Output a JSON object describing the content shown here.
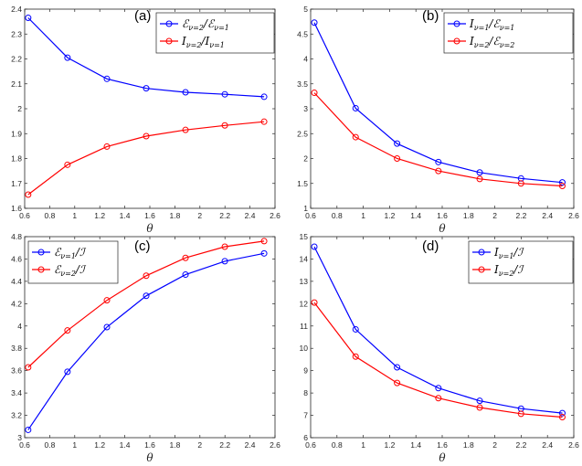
{
  "chart_data": [
    {
      "type": "line",
      "panel": "(a)",
      "xlabel": "θ",
      "x": [
        0.628,
        0.942,
        1.257,
        1.571,
        1.885,
        2.199,
        2.513
      ],
      "xlim": [
        0.6,
        2.6
      ],
      "xticks": [
        "0.6",
        "0.8",
        "1",
        "1.2",
        "1.4",
        "1.6",
        "1.8",
        "2",
        "2.2",
        "2.4",
        "2.6"
      ],
      "ylim": [
        1.6,
        2.4
      ],
      "yticks": [
        "1.6",
        "1.7",
        "1.8",
        "1.9",
        "2",
        "2.1",
        "2.2",
        "2.3",
        "2.4"
      ],
      "legend_position": "top-right",
      "series": [
        {
          "name": "E_{ν=2}/E_{ν=1}",
          "legend": {
            "a": "ℰ",
            "as": "ν=2",
            "b": "ℰ",
            "bs": "ν=1"
          },
          "color": "#0000ff",
          "values": [
            2.365,
            2.205,
            2.12,
            2.082,
            2.066,
            2.058,
            2.048
          ]
        },
        {
          "name": "I_{ν=2}/I_{ν=1}",
          "legend": {
            "a": "I",
            "as": "ν=2",
            "b": "I",
            "bs": "ν=1"
          },
          "color": "#ff0000",
          "values": [
            1.655,
            1.775,
            1.848,
            1.89,
            1.915,
            1.933,
            1.948
          ]
        }
      ]
    },
    {
      "type": "line",
      "panel": "(b)",
      "xlabel": "θ",
      "x": [
        0.628,
        0.942,
        1.257,
        1.571,
        1.885,
        2.199,
        2.513
      ],
      "xlim": [
        0.6,
        2.6
      ],
      "xticks": [
        "0.6",
        "0.8",
        "1",
        "1.2",
        "1.4",
        "1.6",
        "1.8",
        "2",
        "2.2",
        "2.4",
        "2.6"
      ],
      "ylim": [
        1,
        5
      ],
      "yticks": [
        "1",
        "1.5",
        "2",
        "2.5",
        "3",
        "3.5",
        "4",
        "4.5",
        "5"
      ],
      "legend_position": "top-right",
      "series": [
        {
          "name": "I_{ν=1}/E_{ν=1}",
          "legend": {
            "a": "I",
            "as": "ν=1",
            "b": "ℰ",
            "bs": "ν=1"
          },
          "color": "#0000ff",
          "values": [
            4.73,
            3.01,
            2.3,
            1.93,
            1.72,
            1.6,
            1.52
          ]
        },
        {
          "name": "I_{ν=2}/E_{ν=2}",
          "legend": {
            "a": "I",
            "as": "ν=2",
            "b": "ℰ",
            "bs": "ν=2"
          },
          "color": "#ff0000",
          "values": [
            3.32,
            2.43,
            2.0,
            1.75,
            1.59,
            1.5,
            1.45
          ]
        }
      ]
    },
    {
      "type": "line",
      "panel": "(c)",
      "xlabel": "θ",
      "x": [
        0.628,
        0.942,
        1.257,
        1.571,
        1.885,
        2.199,
        2.513
      ],
      "xlim": [
        0.6,
        2.6
      ],
      "xticks": [
        "0.6",
        "0.8",
        "1",
        "1.2",
        "1.4",
        "1.6",
        "1.8",
        "2",
        "2.2",
        "2.4",
        "2.6"
      ],
      "ylim": [
        3,
        4.8
      ],
      "yticks": [
        "3",
        "3.2",
        "3.4",
        "3.6",
        "3.8",
        "4",
        "4.2",
        "4.4",
        "4.6",
        "4.8"
      ],
      "legend_position": "top-left",
      "series": [
        {
          "name": "E_{ν=1}/I",
          "legend": {
            "a": "ℰ",
            "as": "ν=1",
            "b": "ℐ",
            "bs": ""
          },
          "color": "#0000ff",
          "values": [
            3.07,
            3.59,
            3.99,
            4.27,
            4.46,
            4.58,
            4.65
          ]
        },
        {
          "name": "E_{ν=2}/I",
          "legend": {
            "a": "ℰ",
            "as": "ν=2",
            "b": "ℐ",
            "bs": ""
          },
          "color": "#ff0000",
          "values": [
            3.63,
            3.96,
            4.23,
            4.45,
            4.61,
            4.71,
            4.76
          ]
        }
      ]
    },
    {
      "type": "line",
      "panel": "(d)",
      "xlabel": "θ",
      "x": [
        0.628,
        0.942,
        1.257,
        1.571,
        1.885,
        2.199,
        2.513
      ],
      "xlim": [
        0.6,
        2.6
      ],
      "xticks": [
        "0.6",
        "0.8",
        "1",
        "1.2",
        "1.4",
        "1.6",
        "1.8",
        "2",
        "2.2",
        "2.4",
        "2.6"
      ],
      "ylim": [
        6,
        15
      ],
      "yticks": [
        "6",
        "7",
        "8",
        "9",
        "10",
        "11",
        "12",
        "13",
        "14",
        "15"
      ],
      "legend_position": "top-right",
      "series": [
        {
          "name": "I_{ν=1}/I",
          "legend": {
            "a": "I",
            "as": "ν=1",
            "b": "ℐ",
            "bs": ""
          },
          "color": "#0000ff",
          "values": [
            14.55,
            10.85,
            9.15,
            8.22,
            7.65,
            7.3,
            7.1
          ]
        },
        {
          "name": "I_{ν=2}/I",
          "legend": {
            "a": "I",
            "as": "ν=2",
            "b": "ℐ",
            "bs": ""
          },
          "color": "#ff0000",
          "values": [
            12.05,
            9.63,
            8.45,
            7.77,
            7.35,
            7.07,
            6.92
          ]
        }
      ]
    }
  ]
}
